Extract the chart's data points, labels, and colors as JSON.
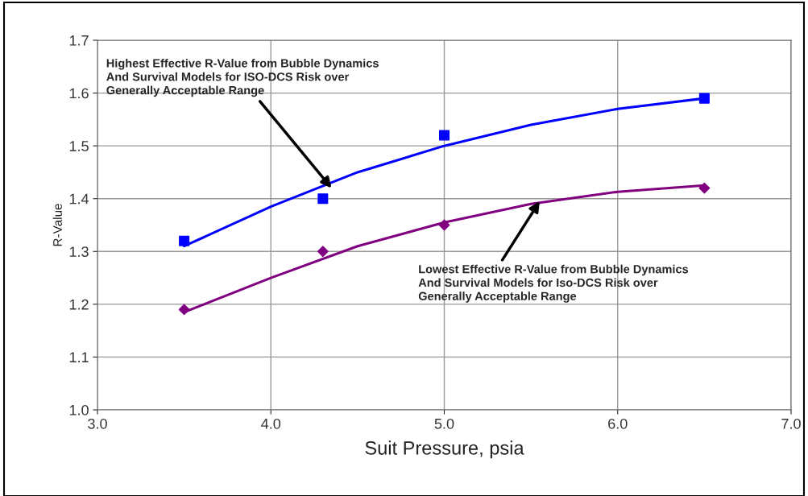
{
  "chart_data": {
    "type": "scatter",
    "xlabel": "Suit Pressure, psia",
    "ylabel": "R-Value",
    "xlim": [
      3,
      7
    ],
    "ylim": [
      1,
      1.7
    ],
    "xticks": [
      {
        "value": 3,
        "label": "3.0"
      },
      {
        "value": 4,
        "label": "4.0"
      },
      {
        "value": 5,
        "label": "5.0"
      },
      {
        "value": 6,
        "label": "6.0"
      },
      {
        "value": 7,
        "label": "7.0"
      }
    ],
    "yticks": [
      {
        "value": 1,
        "label": "1.0"
      },
      1.1,
      1.2,
      1.3,
      1.4,
      1.5,
      1.6,
      1.7
    ],
    "grid": true,
    "series": [
      {
        "marker": "square",
        "color": "#0000ff",
        "x": [
          3.5,
          4.3,
          5.0,
          6.5
        ],
        "values": [
          1.32,
          1.4,
          1.52,
          1.59
        ]
      },
      {
        "marker": "diamond",
        "color": "#800080",
        "x": [
          3.5,
          4.3,
          5.0,
          6.5
        ],
        "values": [
          1.19,
          1.3,
          1.35,
          1.42
        ]
      },
      {
        "type": "line",
        "marker": "none",
        "color": "#0000ff",
        "x": [
          3.5,
          4.0,
          4.5,
          5.0,
          5.5,
          6.0,
          6.5
        ],
        "values": [
          1.31,
          1.385,
          1.45,
          1.5,
          1.54,
          1.57,
          1.59
        ]
      },
      {
        "type": "line",
        "marker": "none",
        "color": "#800080",
        "x": [
          3.5,
          4.0,
          4.5,
          5.0,
          5.5,
          6.0,
          6.5
        ],
        "values": [
          1.185,
          1.25,
          1.31,
          1.355,
          1.39,
          1.413,
          1.425
        ]
      }
    ],
    "annotations": [
      {
        "text": "Highest Effective R-Value from Bubble Dynamics\nAnd Survival Models for ISO-DCS Risk over\nGenerally Acceptable Range",
        "x": 4.35,
        "y": 1.42
      },
      {
        "text": "Lowest Effective R-Value from Bubble Dynamics\nAnd Survival Models for Iso-DCS Risk over\nGenerally Acceptable Range",
        "x": 5.55,
        "y": 1.395
      }
    ]
  }
}
